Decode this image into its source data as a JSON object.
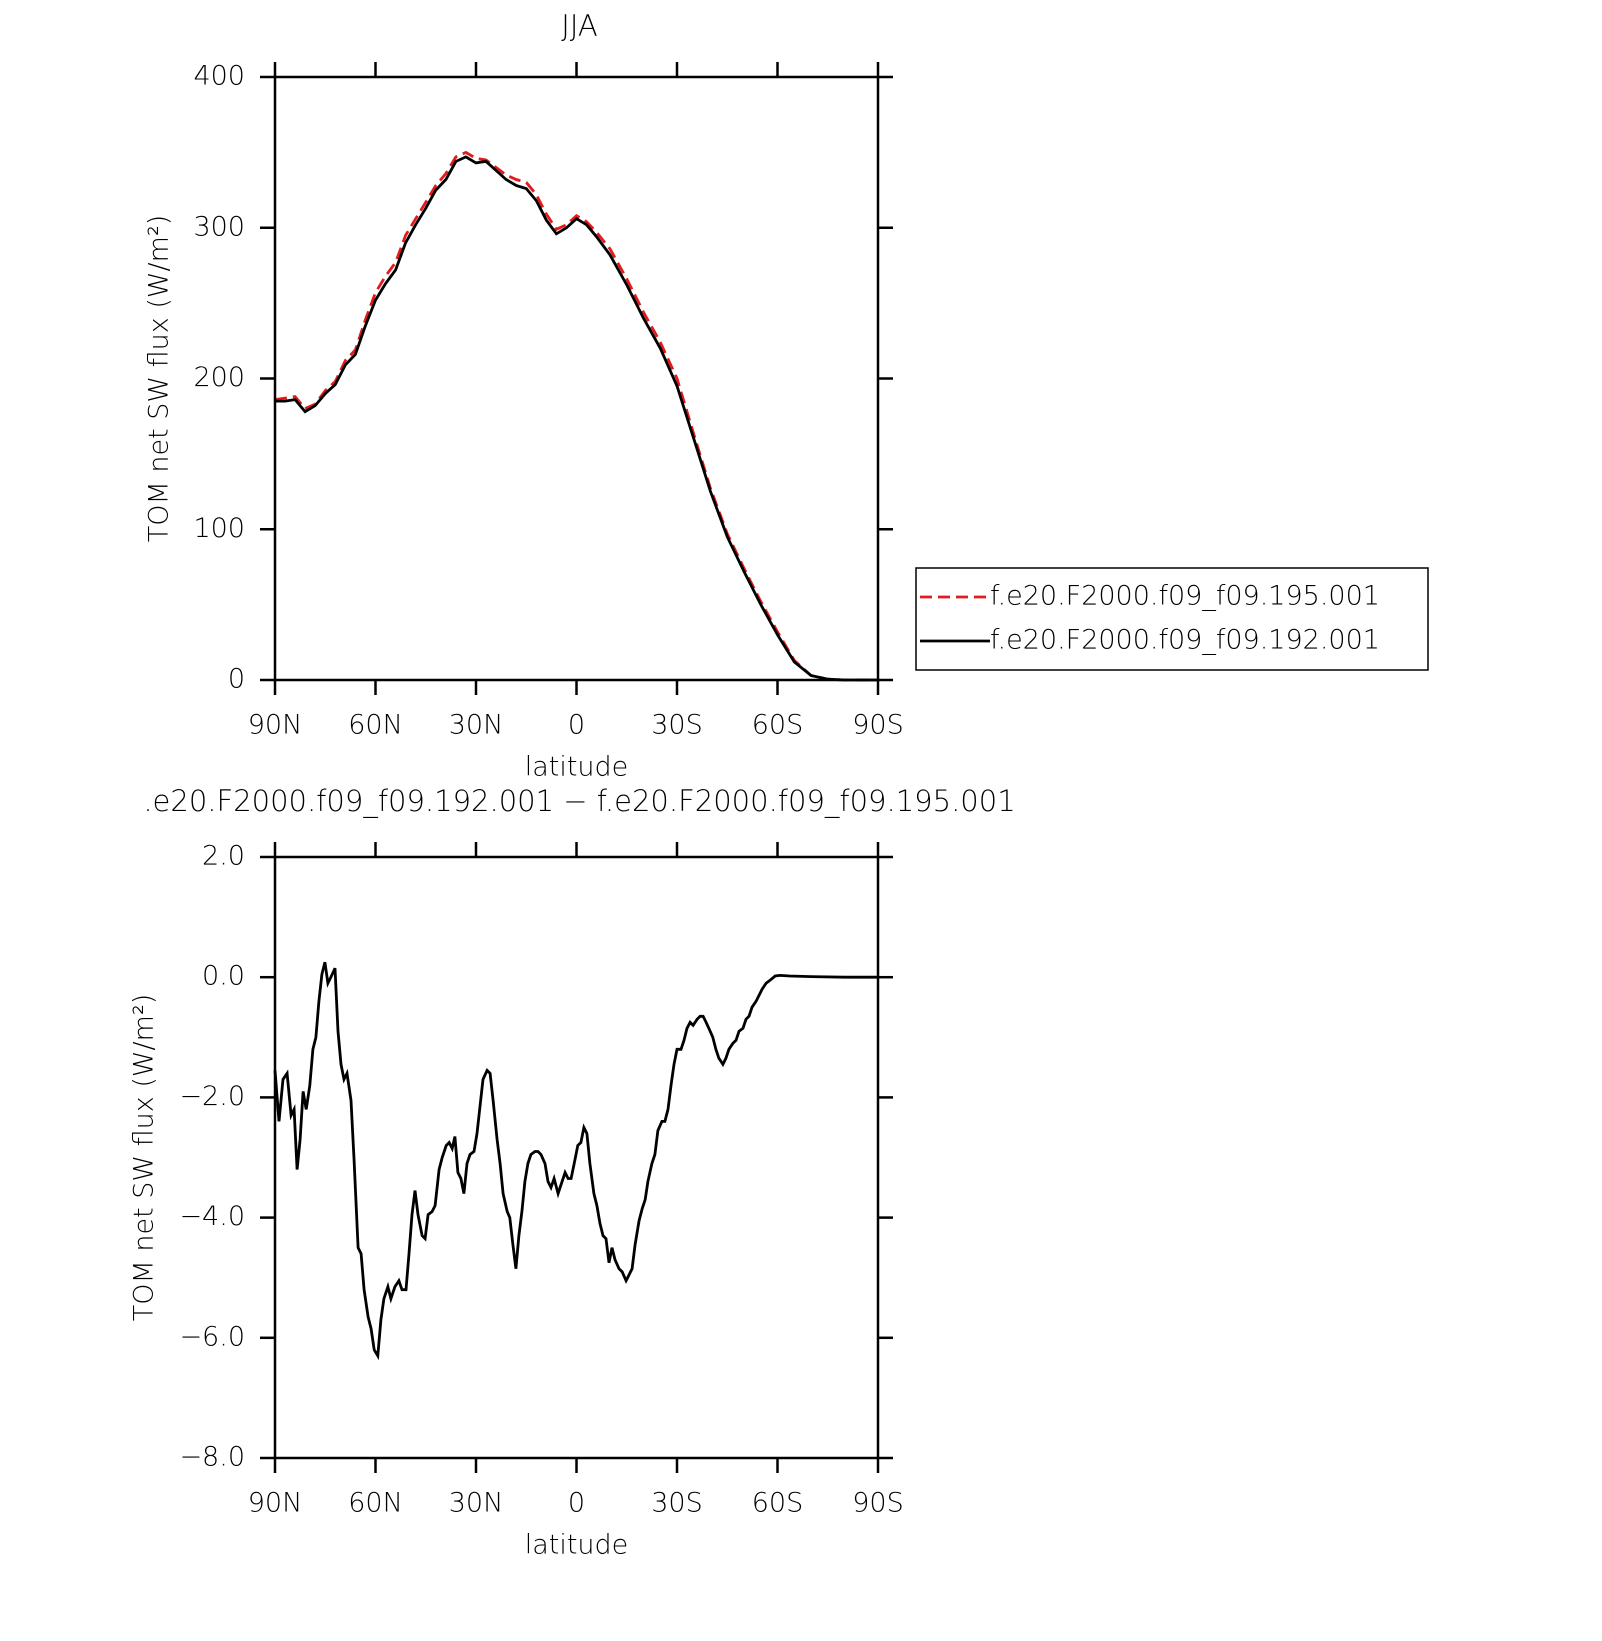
{
  "chart_data": [
    {
      "type": "line",
      "title": "JJA",
      "xlabel": "latitude",
      "ylabel": "TOM net SW flux (W/m²)",
      "xlim": [
        90,
        -90
      ],
      "xticks": [
        {
          "value": 90,
          "label": "90N"
        },
        {
          "value": 60,
          "label": "60N"
        },
        {
          "value": 30,
          "label": "30N"
        },
        0,
        {
          "value": -30,
          "label": "30S"
        },
        {
          "value": -60,
          "label": "60S"
        },
        {
          "value": -90,
          "label": "90S"
        }
      ],
      "ylim": [
        0,
        400
      ],
      "yticks": [
        0,
        100,
        200,
        300,
        400
      ],
      "legend": "right",
      "x": [
        90,
        87,
        84,
        81,
        78,
        75,
        72,
        69,
        66,
        63,
        60,
        57,
        54,
        51,
        48,
        45,
        42,
        39,
        36,
        33,
        30,
        27,
        24,
        21,
        18,
        15,
        12,
        9,
        6,
        3,
        0,
        -3,
        -6,
        -10,
        -15,
        -20,
        -25,
        -30,
        -35,
        -40,
        -45,
        -50,
        -55,
        -60,
        -65,
        -70,
        -75,
        -80,
        -85,
        -90
      ],
      "series": [
        {
          "name": "f.e20.F2000.f09_f09.195.001",
          "color": "#e41a1c",
          "dashed": true,
          "values": [
            186,
            187,
            188,
            180,
            183,
            192,
            198,
            212,
            219,
            239,
            257,
            268,
            277,
            295,
            306,
            317,
            328,
            336,
            347,
            350,
            346,
            345,
            340,
            335,
            332,
            330,
            322,
            309,
            299,
            302,
            308,
            304,
            297,
            286,
            266,
            244,
            224,
            200,
            163,
            127,
            97,
            74,
            52,
            32,
            13,
            3,
            0.5,
            0,
            0,
            0
          ]
        },
        {
          "name": "f.e20.F2000.f09_f09.192.001",
          "color": "#000000",
          "dashed": false,
          "values": [
            185,
            185,
            186,
            178,
            182,
            190,
            196,
            209,
            216,
            235,
            252,
            263,
            272,
            290,
            302,
            313,
            325,
            332,
            344,
            347,
            343,
            344,
            338,
            332,
            328,
            326,
            318,
            305,
            296,
            300,
            306,
            302,
            294,
            282,
            262,
            240,
            220,
            195,
            160,
            125,
            95,
            72,
            50,
            30,
            12,
            3,
            0.5,
            0,
            0,
            0
          ]
        }
      ]
    },
    {
      "type": "line",
      "title": ".e20.F2000.f09_f09.192.001 − f.e20.F2000.f09_f09.195.001",
      "xlabel": "latitude",
      "ylabel": "TOM net SW flux (W/m²)",
      "xlim": [
        90,
        -90
      ],
      "xticks": [
        {
          "value": 90,
          "label": "90N"
        },
        {
          "value": 60,
          "label": "60N"
        },
        {
          "value": 30,
          "label": "30N"
        },
        0,
        {
          "value": -30,
          "label": "30S"
        },
        {
          "value": -60,
          "label": "60S"
        },
        {
          "value": -90,
          "label": "90S"
        }
      ],
      "ylim": [
        -8,
        2
      ],
      "yticks": [
        {
          "value": 2,
          "label": "2.0"
        },
        {
          "value": 0,
          "label": "0.0"
        },
        {
          "value": -2,
          "label": "−2.0"
        },
        {
          "value": -4,
          "label": "−4.0"
        },
        {
          "value": -6,
          "label": "−6.0"
        },
        {
          "value": -8,
          "label": "−8.0"
        }
      ],
      "x": [
        90,
        88.8,
        87.6,
        86.4,
        85.2,
        84.3,
        83.4,
        82.5,
        81.6,
        80.7,
        79.6,
        78.7,
        77.8,
        76.9,
        76.0,
        75.1,
        74.2,
        73.3,
        72.1,
        71.2,
        70.3,
        69.4,
        68.5,
        67.3,
        66.4,
        65.2,
        64.3,
        63.4,
        62.2,
        61.3,
        60.4,
        59.3,
        58.4,
        57.5,
        56.3,
        55.4,
        54.2,
        53.0,
        52.1,
        50.9,
        50.0,
        49.1,
        48.2,
        47.3,
        46.1,
        45.2,
        44.3,
        43.1,
        42.2,
        41.0,
        40.1,
        38.9,
        38.0,
        37.1,
        36.3,
        35.4,
        34.5,
        33.6,
        32.7,
        31.8,
        30.6,
        29.7,
        28.8,
        27.9,
        26.7,
        25.8,
        24.9,
        23.7,
        22.8,
        21.9,
        20.7,
        19.9,
        19.0,
        18.1,
        17.2,
        16.3,
        15.4,
        14.5,
        13.6,
        12.4,
        11.5,
        10.6,
        9.4,
        8.5,
        7.6,
        6.7,
        5.5,
        4.6,
        3.4,
        2.5,
        1.6,
        0.7,
        -0.4,
        -1.3,
        -2.2,
        -3.1,
        -4.0,
        -5.2,
        -6.1,
        -7.0,
        -7.9,
        -8.8,
        -9.7,
        -10.6,
        -11.5,
        -12.7,
        -13.6,
        -14.8,
        -15.7,
        -16.6,
        -17.5,
        -18.7,
        -19.6,
        -20.5,
        -21.3,
        -22.5,
        -23.4,
        -24.3,
        -25.5,
        -26.4,
        -27.3,
        -28.2,
        -29.1,
        -30.0,
        -31.2,
        -32.1,
        -33.0,
        -33.9,
        -34.8,
        -36.0,
        -36.9,
        -37.8,
        -38.7,
        -39.9,
        -40.7,
        -41.6,
        -42.5,
        -43.7,
        -44.6,
        -45.5,
        -46.7,
        -47.6,
        -48.5,
        -49.7,
        -50.6,
        -51.5,
        -52.4,
        -53.6,
        -54.5,
        -55.4,
        -56.6,
        -57.8,
        -59.3,
        -60.7,
        -63.7,
        -70,
        -80,
        -90
      ],
      "series": [
        {
          "color": "#000000",
          "dashed": false,
          "values": [
            -1.55,
            -2.4,
            -1.7,
            -1.6,
            -2.3,
            -2.2,
            -3.2,
            -2.7,
            -1.9,
            -2.2,
            -1.8,
            -1.2,
            -1.0,
            -0.4,
            0.05,
            0.25,
            -0.1,
            0,
            0.15,
            -0.9,
            -1.45,
            -1.7,
            -1.6,
            -2.05,
            -3.05,
            -4.5,
            -4.6,
            -5.2,
            -5.65,
            -5.85,
            -6.2,
            -6.3,
            -5.7,
            -5.35,
            -5.15,
            -5.35,
            -5.15,
            -5.05,
            -5.2,
            -5.2,
            -4.6,
            -3.95,
            -3.55,
            -3.95,
            -4.3,
            -4.35,
            -3.95,
            -3.9,
            -3.8,
            -3.2,
            -3.0,
            -2.8,
            -2.75,
            -2.85,
            -2.65,
            -3.25,
            -3.35,
            -3.6,
            -3.1,
            -2.95,
            -2.9,
            -2.6,
            -2.15,
            -1.7,
            -1.55,
            -1.6,
            -2.05,
            -2.7,
            -3.1,
            -3.6,
            -3.9,
            -4.0,
            -4.45,
            -4.85,
            -4.3,
            -3.9,
            -3.4,
            -3.1,
            -2.95,
            -2.9,
            -2.9,
            -2.95,
            -3.1,
            -3.4,
            -3.5,
            -3.35,
            -3.6,
            -3.45,
            -3.25,
            -3.35,
            -3.35,
            -3.1,
            -2.8,
            -2.75,
            -2.5,
            -2.6,
            -3.1,
            -3.6,
            -3.8,
            -4.1,
            -4.3,
            -4.35,
            -4.75,
            -4.5,
            -4.7,
            -4.85,
            -4.9,
            -5.05,
            -4.95,
            -4.85,
            -4.45,
            -4.05,
            -3.85,
            -3.7,
            -3.4,
            -3.1,
            -2.95,
            -2.55,
            -2.4,
            -2.4,
            -2.2,
            -1.8,
            -1.45,
            -1.2,
            -1.2,
            -1.05,
            -0.85,
            -0.75,
            -0.8,
            -0.7,
            -0.65,
            -0.65,
            -0.75,
            -0.9,
            -1.0,
            -1.2,
            -1.35,
            -1.45,
            -1.35,
            -1.2,
            -1.1,
            -1.05,
            -0.9,
            -0.85,
            -0.7,
            -0.65,
            -0.5,
            -0.4,
            -0.3,
            -0.2,
            -0.1,
            -0.05,
            0.02,
            0.03,
            0.02,
            0.01,
            0,
            0
          ]
        }
      ]
    }
  ]
}
